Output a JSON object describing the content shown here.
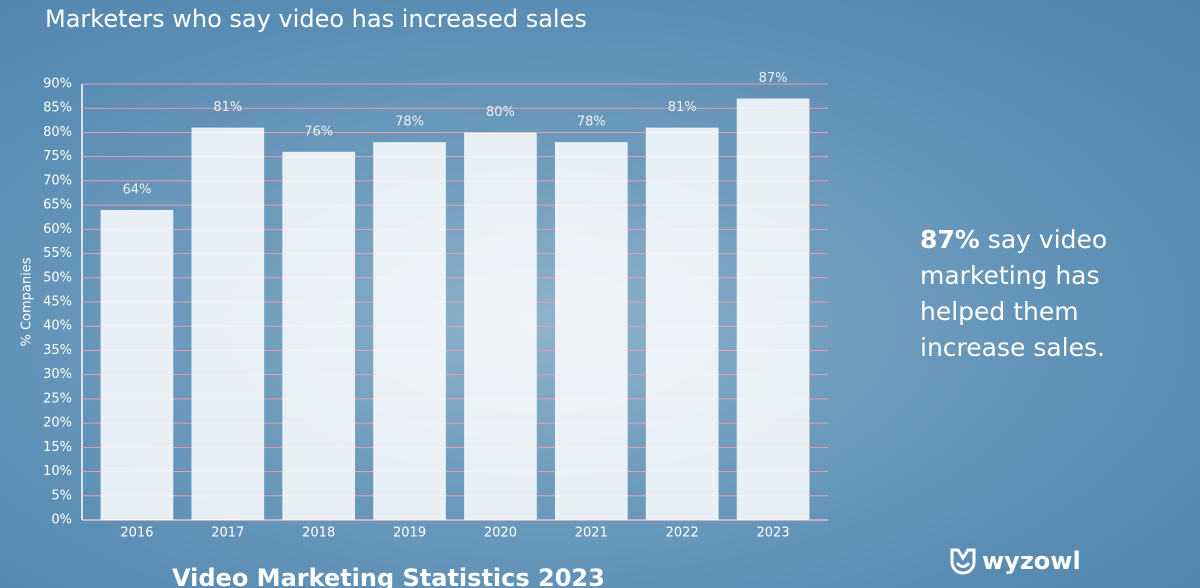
{
  "chart_data": {
    "type": "bar",
    "title": "Marketers who say video has increased sales",
    "y_label": "% Companies",
    "categories": [
      "2016",
      "2017",
      "2018",
      "2019",
      "2020",
      "2021",
      "2022",
      "2023"
    ],
    "values": [
      64,
      81,
      76,
      78,
      80,
      78,
      81,
      87
    ],
    "value_labels": [
      "64%",
      "81%",
      "76%",
      "78%",
      "80%",
      "78%",
      "81%",
      "87%"
    ],
    "color": "#ffffff",
    "ylim": [
      0,
      90
    ],
    "yticks": [
      {
        "value": 0,
        "label": "0%"
      },
      {
        "value": 5,
        "label": "5%"
      },
      {
        "value": 10,
        "label": "10%"
      },
      {
        "value": 15,
        "label": "15%"
      },
      {
        "value": 20,
        "label": "20%"
      },
      {
        "value": 25,
        "label": "25%"
      },
      {
        "value": 30,
        "label": "30%"
      },
      {
        "value": 35,
        "label": "35%"
      },
      {
        "value": 40,
        "label": "40%"
      },
      {
        "value": 45,
        "label": "45%"
      },
      {
        "value": 50,
        "label": "50%"
      },
      {
        "value": 55,
        "label": "55%"
      },
      {
        "value": 60,
        "label": "60%"
      },
      {
        "value": 65,
        "label": "65%"
      },
      {
        "value": 70,
        "label": "70%"
      },
      {
        "value": 75,
        "label": "75%"
      },
      {
        "value": 80,
        "label": "80%"
      },
      {
        "value": 85,
        "label": "85%"
      },
      {
        "value": 90,
        "label": "90%"
      }
    ],
    "grid": true
  },
  "callout": {
    "highlight": "87%",
    "text": "say video marketing has helped them increase sales."
  },
  "footer": "Video Marketing Statistics 2023",
  "logo": "wyzowl"
}
